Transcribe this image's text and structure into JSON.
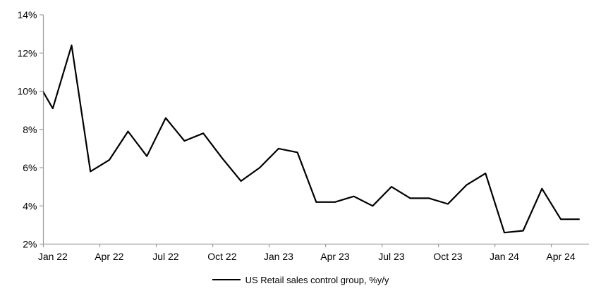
{
  "chart_data": {
    "type": "line",
    "title": "",
    "legend": [
      "US Retail sales control group, %y/y"
    ],
    "legend_position": "bottom-center",
    "background": "#ffffff",
    "grid": false,
    "line_color": "#000000",
    "axis_color": "#9d9d9d",
    "text_color": "#000000",
    "ylim": [
      2,
      14
    ],
    "y_tick_values": [
      2,
      4,
      6,
      8,
      10,
      12,
      14
    ],
    "y_tick_labels": [
      "2%",
      "4%",
      "6%",
      "8%",
      "10%",
      "12%",
      "14%"
    ],
    "x_tick_labels": [
      "Jan 22",
      "Apr 22",
      "Jul 22",
      "Oct 22",
      "Jan 23",
      "Apr 23",
      "Jul 23",
      "Oct 23",
      "Jan 24",
      "Apr 24"
    ],
    "x_tick_every_n_months": 3,
    "lead_in": {
      "label": "Dec 21",
      "value": 10.8,
      "note": "segment clipped at left axis, visible entering at ~10%"
    },
    "series": [
      {
        "name": "US Retail sales control group, %y/y",
        "color": "#000000",
        "x": [
          "Jan 22",
          "Feb 22",
          "Mar 22",
          "Apr 22",
          "May 22",
          "Jun 22",
          "Jul 22",
          "Aug 22",
          "Sep 22",
          "Oct 22",
          "Nov 22",
          "Dec 22",
          "Jan 23",
          "Feb 23",
          "Mar 23",
          "Apr 23",
          "May 23",
          "Jun 23",
          "Jul 23",
          "Aug 23",
          "Sep 23",
          "Oct 23",
          "Nov 23",
          "Dec 23",
          "Jan 24",
          "Feb 24",
          "Mar 24",
          "Apr 24",
          "May 24"
        ],
        "values": [
          9.1,
          12.4,
          5.8,
          6.4,
          7.9,
          6.6,
          8.6,
          7.4,
          7.8,
          6.5,
          5.3,
          6.0,
          7.0,
          6.8,
          4.2,
          4.2,
          4.5,
          4.0,
          5.0,
          4.4,
          4.4,
          4.1,
          5.1,
          5.7,
          2.6,
          2.7,
          4.9,
          3.3,
          3.3
        ]
      }
    ]
  }
}
